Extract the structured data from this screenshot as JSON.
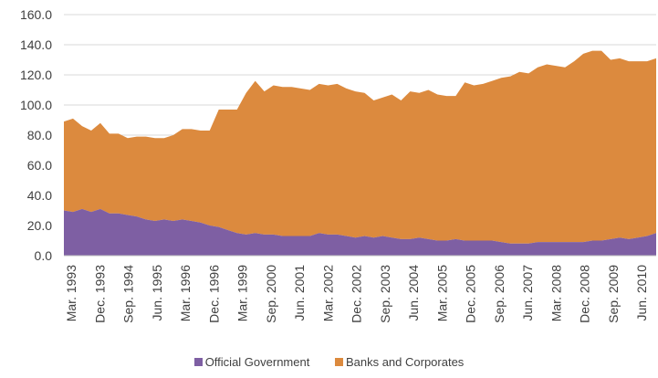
{
  "chart_data": {
    "type": "area",
    "stacked": true,
    "title": "",
    "xlabel": "",
    "ylabel": "",
    "ylim": [
      0,
      160
    ],
    "yticks": [
      "0.0",
      "20.0",
      "40.0",
      "60.0",
      "80.0",
      "100.0",
      "120.0",
      "140.0",
      "160.0"
    ],
    "grid": "horizontal",
    "legend_position": "bottom",
    "x_tick_labels": [
      "Mar. 1993",
      "Dec. 1993",
      "Sep. 1994",
      "Jun. 1995",
      "Mar. 1996",
      "Dec. 1996",
      "Mar. 1999",
      "Sep. 2000",
      "Jun. 2001",
      "Mar. 2002",
      "Dec. 2002",
      "Sep. 2003",
      "Jun. 2004",
      "Mar. 2005",
      "Dec. 2005",
      "Sep. 2006",
      "Jun. 2007",
      "Mar. 2008",
      "Dec. 2008",
      "Sep. 2009",
      "Jun. 2010"
    ],
    "series": [
      {
        "name": "Official Government",
        "color": "#7e5fa3",
        "values": [
          30,
          29,
          31,
          29,
          31,
          28,
          28,
          27,
          26,
          24,
          23,
          24,
          23,
          24,
          23,
          22,
          20,
          19,
          17,
          15,
          14,
          15,
          14,
          14,
          13,
          13,
          13,
          13,
          15,
          14,
          14,
          13,
          12,
          13,
          12,
          13,
          12,
          11,
          11,
          12,
          11,
          10,
          10,
          11,
          10,
          10,
          10,
          10,
          9,
          8,
          8,
          8,
          9,
          9,
          9,
          9,
          9,
          9,
          10,
          10,
          11,
          12,
          11,
          12,
          13,
          15
        ]
      },
      {
        "name": "Banks and Corporates",
        "color": "#dc8a3e",
        "values": [
          59,
          62,
          55,
          54,
          57,
          53,
          53,
          51,
          53,
          55,
          55,
          54,
          57,
          60,
          61,
          61,
          63,
          78,
          80,
          82,
          94,
          101,
          95,
          99,
          99,
          99,
          98,
          97,
          99,
          99,
          100,
          98,
          97,
          95,
          91,
          92,
          95,
          92,
          98,
          96,
          99,
          97,
          96,
          95,
          105,
          103,
          104,
          106,
          109,
          111,
          114,
          113,
          116,
          118,
          117,
          116,
          120,
          125,
          126,
          126,
          119,
          119,
          118,
          117,
          116,
          116
        ]
      }
    ]
  }
}
